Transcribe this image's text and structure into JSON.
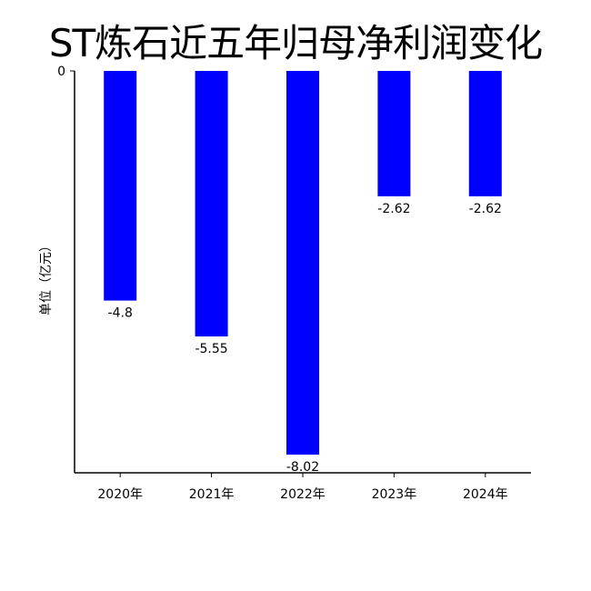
{
  "chart_data": {
    "type": "bar",
    "title": "ST炼石近五年归母净利润变化",
    "xlabel": "",
    "ylabel": "单位（亿元）",
    "categories": [
      "2020年",
      "2021年",
      "2022年",
      "2023年",
      "2024年"
    ],
    "values": [
      -4.8,
      -5.55,
      -8.02,
      -2.62,
      -2.62
    ],
    "value_labels": [
      "-4.8",
      "-5.55",
      "-8.02",
      "-2.62",
      "-2.62"
    ],
    "y_ticks": [
      {
        "value": 0,
        "label": "0"
      }
    ],
    "ylim": [
      -8.4,
      0
    ],
    "bar_color": "#0000ff",
    "grid": false,
    "legend": "none"
  }
}
